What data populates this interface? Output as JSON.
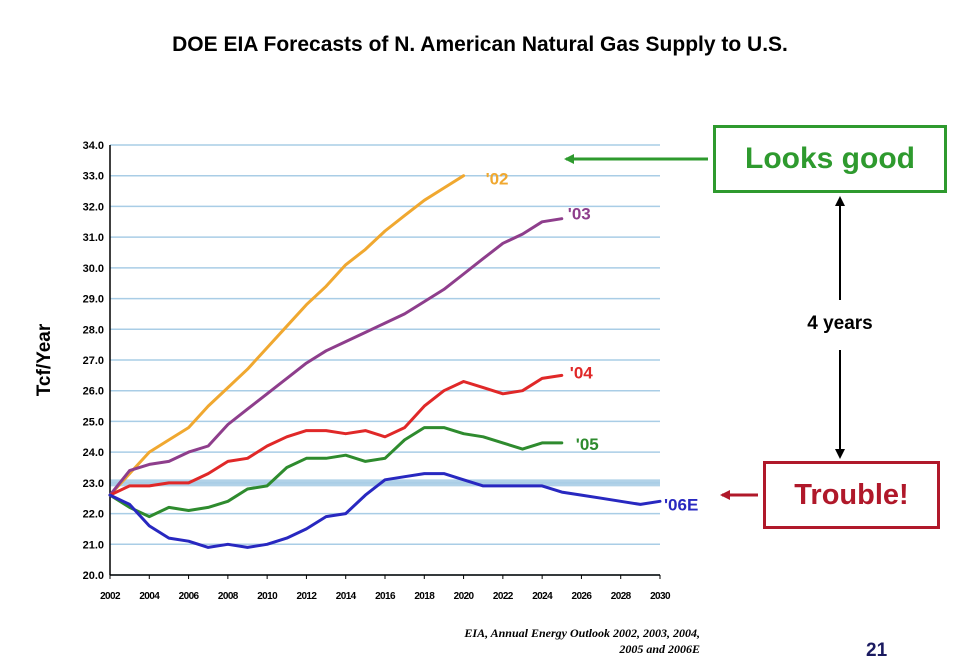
{
  "slide": {
    "title": "DOE EIA Forecasts of N. American Natural Gas Supply to U.S.",
    "source_line1": "EIA, Annual Energy Outlook 2002, 2003, 2004,",
    "source_line2": "2005 and 2006E",
    "page_number": "21"
  },
  "callouts": {
    "looks_good": "Looks good",
    "trouble": "Trouble!",
    "span_label": "4 years"
  },
  "colors": {
    "looks_good": "#2e9a2e",
    "trouble": "#b0182a",
    "gridline": "#a9cde6",
    "highlight_band": "#a9cde6"
  },
  "chart_data": {
    "type": "line",
    "title": "",
    "xlabel": "",
    "ylabel": "Tcf/Year",
    "xlim": [
      2002,
      2030
    ],
    "ylim": [
      20.0,
      34.0
    ],
    "grid": true,
    "x_ticks": [
      "2002",
      "2004",
      "2006",
      "2008",
      "2010",
      "2012",
      "2014",
      "2016",
      "2018",
      "2020",
      "2022",
      "2024",
      "2026",
      "2028",
      "2030"
    ],
    "y_ticks": [
      "20.0",
      "21.0",
      "22.0",
      "23.0",
      "24.0",
      "25.0",
      "26.0",
      "27.0",
      "28.0",
      "29.0",
      "30.0",
      "31.0",
      "32.0",
      "33.0",
      "34.0"
    ],
    "highlight_y": 23.0,
    "series": [
      {
        "name": "'02",
        "color": "#f0a830",
        "x": [
          2002,
          2003,
          2004,
          2005,
          2006,
          2007,
          2008,
          2009,
          2010,
          2011,
          2012,
          2013,
          2014,
          2015,
          2016,
          2017,
          2018,
          2019,
          2020
        ],
        "y": [
          22.6,
          23.3,
          24.0,
          24.4,
          24.8,
          25.5,
          26.1,
          26.7,
          27.4,
          28.1,
          28.8,
          29.4,
          30.1,
          30.6,
          31.2,
          31.7,
          32.2,
          32.6,
          33.0
        ]
      },
      {
        "name": "'03",
        "color": "#8e3e8c",
        "x": [
          2002,
          2003,
          2004,
          2005,
          2006,
          2007,
          2008,
          2009,
          2010,
          2011,
          2012,
          2013,
          2014,
          2015,
          2016,
          2017,
          2018,
          2019,
          2020,
          2021,
          2022,
          2023,
          2024,
          2025
        ],
        "y": [
          22.6,
          23.4,
          23.6,
          23.7,
          24.0,
          24.2,
          24.9,
          25.4,
          25.9,
          26.4,
          26.9,
          27.3,
          27.6,
          27.9,
          28.2,
          28.5,
          28.9,
          29.3,
          29.8,
          30.3,
          30.8,
          31.1,
          31.5,
          31.6
        ]
      },
      {
        "name": "'04",
        "color": "#e02828",
        "x": [
          2002,
          2003,
          2004,
          2005,
          2006,
          2007,
          2008,
          2009,
          2010,
          2011,
          2012,
          2013,
          2014,
          2015,
          2016,
          2017,
          2018,
          2019,
          2020,
          2021,
          2022,
          2023,
          2024,
          2025
        ],
        "y": [
          22.6,
          22.9,
          22.9,
          23.0,
          23.0,
          23.3,
          23.7,
          23.8,
          24.2,
          24.5,
          24.7,
          24.7,
          24.6,
          24.7,
          24.5,
          24.8,
          25.5,
          26.0,
          26.3,
          26.1,
          25.9,
          26.0,
          26.4,
          26.5
        ]
      },
      {
        "name": "'05",
        "color": "#2e8b2e",
        "x": [
          2002,
          2003,
          2004,
          2005,
          2006,
          2007,
          2008,
          2009,
          2010,
          2011,
          2012,
          2013,
          2014,
          2015,
          2016,
          2017,
          2018,
          2019,
          2020,
          2021,
          2022,
          2023,
          2024,
          2025
        ],
        "y": [
          22.6,
          22.2,
          21.9,
          22.2,
          22.1,
          22.2,
          22.4,
          22.8,
          22.9,
          23.5,
          23.8,
          23.8,
          23.9,
          23.7,
          23.8,
          24.4,
          24.8,
          24.8,
          24.6,
          24.5,
          24.3,
          24.1,
          24.3,
          24.3
        ]
      },
      {
        "name": "'06E",
        "color": "#2828c0",
        "x": [
          2002,
          2003,
          2004,
          2005,
          2006,
          2007,
          2008,
          2009,
          2010,
          2011,
          2012,
          2013,
          2014,
          2015,
          2016,
          2017,
          2018,
          2019,
          2020,
          2021,
          2022,
          2023,
          2024,
          2025,
          2026,
          2027,
          2028,
          2029,
          2030
        ],
        "y": [
          22.6,
          22.3,
          21.6,
          21.2,
          21.1,
          20.9,
          21.0,
          20.9,
          21.0,
          21.2,
          21.5,
          21.9,
          22.0,
          22.6,
          23.1,
          23.2,
          23.3,
          23.3,
          23.1,
          22.9,
          22.9,
          22.9,
          22.9,
          22.7,
          22.6,
          22.5,
          22.4,
          22.3,
          22.4
        ]
      }
    ]
  }
}
